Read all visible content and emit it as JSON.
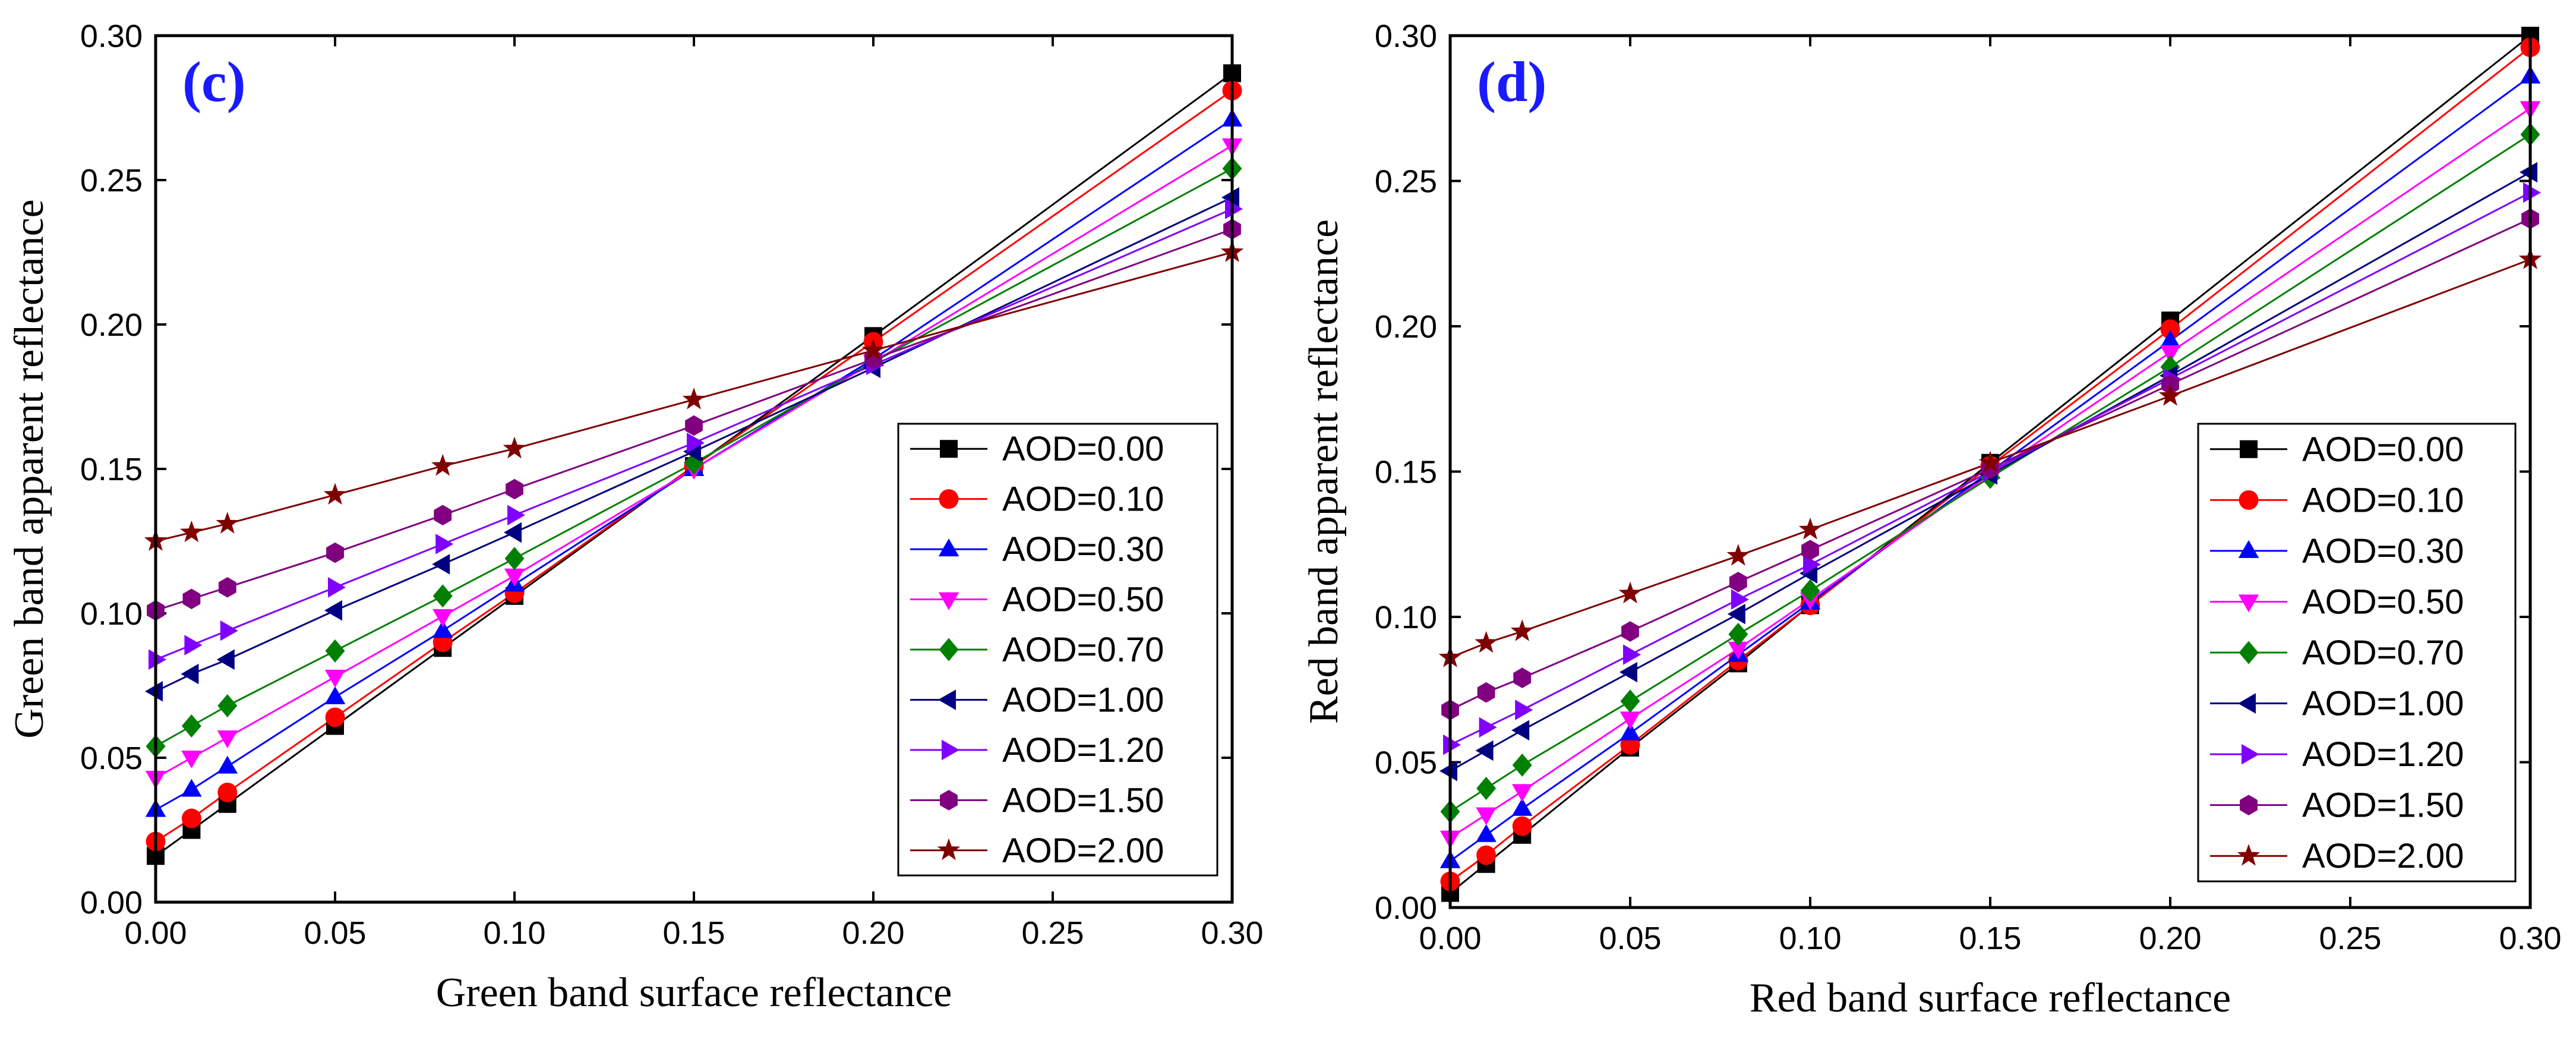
{
  "figure_title": "",
  "colors": {
    "AOD=0.00": "#000000",
    "AOD=0.10": "#ff0000",
    "AOD=0.30": "#0000ff",
    "AOD=0.50": "#ff00ff",
    "AOD=0.70": "#008000",
    "AOD=1.00": "#000080",
    "AOD=1.20": "#8000ff",
    "AOD=1.50": "#800080",
    "AOD=2.00": "#800000",
    "panel_label": "#1a1aff"
  },
  "chart_data": [
    {
      "type": "line",
      "panel_label": "(c)",
      "title": "",
      "xlabel": "Green band surface reflectance",
      "ylabel": "Green band apparent reflectance",
      "xlim": [
        0,
        0.3
      ],
      "ylim": [
        0,
        0.3
      ],
      "xticks": [
        "0.00",
        "0.05",
        "0.10",
        "0.15",
        "0.20",
        "0.25",
        "0.30"
      ],
      "yticks": [
        "0.00",
        "0.05",
        "0.10",
        "0.15",
        "0.20",
        "0.25",
        "0.30"
      ],
      "x": [
        0,
        0.01,
        0.02,
        0.05,
        0.08,
        0.1,
        0.15,
        0.2,
        0.3
      ],
      "legend_position": "lower-right",
      "series": [
        {
          "name": "AOD=0.00",
          "marker": "square",
          "values": [
            0.016,
            0.025,
            0.034,
            0.061,
            0.088,
            0.106,
            0.151,
            0.196,
            0.287
          ]
        },
        {
          "name": "AOD=0.10",
          "marker": "circle",
          "values": [
            0.021,
            0.029,
            0.038,
            0.064,
            0.09,
            0.107,
            0.151,
            0.194,
            0.281
          ]
        },
        {
          "name": "AOD=0.30",
          "marker": "triangle-up",
          "values": [
            0.032,
            0.039,
            0.047,
            0.071,
            0.094,
            0.11,
            0.15,
            0.188,
            0.271
          ]
        },
        {
          "name": "AOD=0.50",
          "marker": "triangle-down",
          "values": [
            0.043,
            0.05,
            0.057,
            0.078,
            0.099,
            0.113,
            0.15,
            0.187,
            0.262
          ]
        },
        {
          "name": "AOD=0.70",
          "marker": "diamond",
          "values": [
            0.054,
            0.061,
            0.068,
            0.087,
            0.106,
            0.119,
            0.152,
            0.187,
            0.254
          ]
        },
        {
          "name": "AOD=1.00",
          "marker": "triangle-left",
          "values": [
            0.073,
            0.079,
            0.084,
            0.101,
            0.117,
            0.128,
            0.156,
            0.185,
            0.244
          ]
        },
        {
          "name": "AOD=1.20",
          "marker": "triangle-right",
          "values": [
            0.084,
            0.089,
            0.094,
            0.109,
            0.124,
            0.134,
            0.159,
            0.186,
            0.24
          ]
        },
        {
          "name": "AOD=1.50",
          "marker": "hexagon",
          "values": [
            0.101,
            0.105,
            0.109,
            0.121,
            0.134,
            0.143,
            0.165,
            0.188,
            0.233
          ]
        },
        {
          "name": "AOD=2.00",
          "marker": "star",
          "values": [
            0.125,
            0.128,
            0.131,
            0.141,
            0.151,
            0.157,
            0.174,
            0.191,
            0.225
          ]
        }
      ]
    },
    {
      "type": "line",
      "panel_label": "(d)",
      "title": "",
      "xlabel": "Red band surface reflectance",
      "ylabel": "Red band apparent reflectance",
      "xlim": [
        0,
        0.3
      ],
      "ylim": [
        0,
        0.3
      ],
      "xticks": [
        "0.00",
        "0.05",
        "0.10",
        "0.15",
        "0.20",
        "0.25",
        "0.30"
      ],
      "yticks": [
        "0.00",
        "0.05",
        "0.10",
        "0.15",
        "0.20",
        "0.25",
        "0.30"
      ],
      "x": [
        0,
        0.01,
        0.02,
        0.05,
        0.08,
        0.1,
        0.15,
        0.2,
        0.3
      ],
      "legend_position": "lower-right",
      "series": [
        {
          "name": "AOD=0.00",
          "marker": "square",
          "values": [
            0.005,
            0.015,
            0.025,
            0.055,
            0.084,
            0.104,
            0.153,
            0.202,
            0.3
          ]
        },
        {
          "name": "AOD=0.10",
          "marker": "circle",
          "values": [
            0.009,
            0.018,
            0.028,
            0.056,
            0.085,
            0.104,
            0.152,
            0.199,
            0.296
          ]
        },
        {
          "name": "AOD=0.30",
          "marker": "triangle-up",
          "values": [
            0.016,
            0.025,
            0.034,
            0.06,
            0.087,
            0.105,
            0.15,
            0.195,
            0.286
          ]
        },
        {
          "name": "AOD=0.50",
          "marker": "triangle-down",
          "values": [
            0.024,
            0.032,
            0.04,
            0.065,
            0.089,
            0.106,
            0.149,
            0.191,
            0.275
          ]
        },
        {
          "name": "AOD=0.70",
          "marker": "diamond",
          "values": [
            0.033,
            0.041,
            0.049,
            0.071,
            0.094,
            0.109,
            0.148,
            0.186,
            0.266
          ]
        },
        {
          "name": "AOD=1.00",
          "marker": "triangle-left",
          "values": [
            0.047,
            0.054,
            0.061,
            0.081,
            0.101,
            0.115,
            0.149,
            0.183,
            0.253
          ]
        },
        {
          "name": "AOD=1.20",
          "marker": "triangle-right",
          "values": [
            0.056,
            0.062,
            0.068,
            0.087,
            0.106,
            0.118,
            0.15,
            0.182,
            0.246
          ]
        },
        {
          "name": "AOD=1.50",
          "marker": "hexagon",
          "values": [
            0.068,
            0.074,
            0.079,
            0.095,
            0.112,
            0.123,
            0.151,
            0.18,
            0.237
          ]
        },
        {
          "name": "AOD=2.00",
          "marker": "star",
          "values": [
            0.086,
            0.091,
            0.095,
            0.108,
            0.121,
            0.13,
            0.153,
            0.176,
            0.223
          ]
        }
      ]
    }
  ]
}
